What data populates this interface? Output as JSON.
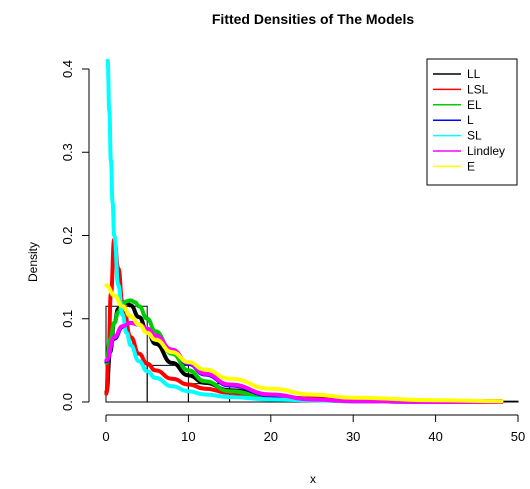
{
  "chart_data": {
    "type": "line",
    "title": "Fitted Densities of The Models",
    "xlabel": "x",
    "ylabel": "Density",
    "xlim": [
      0,
      50
    ],
    "ylim": [
      0,
      0.4
    ],
    "x_ticks": [
      0,
      10,
      20,
      30,
      40,
      50
    ],
    "y_ticks": [
      0.0,
      0.1,
      0.2,
      0.3,
      0.4
    ],
    "x_tick_labels": [
      "0",
      "10",
      "20",
      "30",
      "40",
      "50"
    ],
    "y_tick_labels": [
      "0.0",
      "0.1",
      "0.2",
      "0.3",
      "0.4"
    ],
    "grid": false,
    "legend_position": "top-right",
    "histogram": {
      "bins": [
        0,
        5,
        10,
        15,
        20,
        25,
        30,
        35,
        40,
        45,
        50
      ],
      "density": [
        0.115,
        0.044,
        0.022,
        0.008,
        0.004,
        0.002,
        0.002,
        0.001,
        0.001,
        0.001
      ]
    },
    "series": [
      {
        "name": "LL",
        "color": "#000000",
        "x": [
          0.05,
          0.5,
          1,
          1.5,
          2,
          2.5,
          3,
          4,
          5,
          6,
          8,
          10,
          12,
          15,
          20,
          25,
          30,
          40,
          48
        ],
        "values": [
          0.012,
          0.06,
          0.095,
          0.112,
          0.118,
          0.119,
          0.116,
          0.102,
          0.085,
          0.07,
          0.047,
          0.032,
          0.023,
          0.014,
          0.007,
          0.004,
          0.003,
          0.001,
          0.001
        ]
      },
      {
        "name": "LSL",
        "color": "#ff0000",
        "x": [
          0.05,
          0.3,
          0.6,
          1,
          1.5,
          2,
          3,
          4,
          5,
          6,
          8,
          10,
          12,
          15,
          20,
          25,
          30,
          40,
          48
        ],
        "values": [
          0.01,
          0.06,
          0.13,
          0.195,
          0.16,
          0.12,
          0.078,
          0.058,
          0.046,
          0.038,
          0.028,
          0.021,
          0.016,
          0.011,
          0.006,
          0.004,
          0.003,
          0.001,
          0.001
        ]
      },
      {
        "name": "EL",
        "color": "#00cd00",
        "x": [
          0.05,
          0.5,
          1,
          1.5,
          2,
          2.5,
          3,
          3.5,
          4,
          5,
          6,
          8,
          10,
          12,
          15,
          20,
          25,
          30,
          40,
          48
        ],
        "values": [
          0.047,
          0.075,
          0.095,
          0.108,
          0.117,
          0.121,
          0.122,
          0.12,
          0.115,
          0.1,
          0.085,
          0.058,
          0.038,
          0.025,
          0.013,
          0.004,
          0.002,
          0.001,
          0.0,
          0.0
        ]
      },
      {
        "name": "L",
        "color": "#0000ff",
        "x": [
          0.05,
          1,
          2,
          3,
          4,
          5,
          6,
          8,
          10,
          12,
          15,
          20,
          25,
          30,
          40,
          48
        ],
        "values": [
          0.049,
          0.076,
          0.09,
          0.095,
          0.093,
          0.087,
          0.079,
          0.062,
          0.046,
          0.033,
          0.02,
          0.008,
          0.003,
          0.001,
          0.0,
          0.0
        ]
      },
      {
        "name": "SL",
        "color": "#00ffff",
        "x": [
          0.2,
          0.4,
          0.6,
          0.8,
          1,
          1.5,
          2,
          2.5,
          3,
          4,
          5,
          6,
          8,
          10,
          12,
          15,
          20,
          25,
          30,
          40,
          48
        ],
        "values": [
          0.41,
          0.35,
          0.29,
          0.24,
          0.2,
          0.14,
          0.105,
          0.083,
          0.068,
          0.049,
          0.037,
          0.029,
          0.019,
          0.013,
          0.009,
          0.006,
          0.003,
          0.002,
          0.001,
          0.0,
          0.0
        ]
      },
      {
        "name": "Lindley",
        "color": "#ff00ff",
        "x": [
          0.05,
          1,
          2,
          3,
          4,
          5,
          6,
          8,
          10,
          12,
          15,
          20,
          25,
          30,
          40,
          48
        ],
        "values": [
          0.05,
          0.078,
          0.091,
          0.095,
          0.093,
          0.088,
          0.08,
          0.063,
          0.047,
          0.034,
          0.021,
          0.009,
          0.003,
          0.001,
          0.0,
          0.0
        ]
      },
      {
        "name": "E",
        "color": "#ffff00",
        "x": [
          0.05,
          1,
          2,
          3,
          4,
          5,
          6,
          8,
          10,
          12,
          15,
          20,
          25,
          30,
          40,
          48
        ],
        "values": [
          0.14,
          0.128,
          0.115,
          0.103,
          0.093,
          0.083,
          0.075,
          0.06,
          0.048,
          0.039,
          0.028,
          0.016,
          0.009,
          0.005,
          0.002,
          0.001
        ]
      }
    ]
  }
}
